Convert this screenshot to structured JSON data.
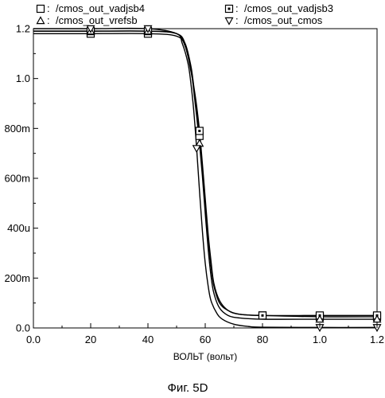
{
  "chart_data": {
    "type": "line",
    "title": "",
    "xlabel": "ВОЛЬТ (вольт)",
    "ylabel": "",
    "x_ticks": [
      "0.0",
      "20",
      "40",
      "60",
      "80",
      "1.0",
      "1.2"
    ],
    "x_tick_values": [
      0,
      20,
      40,
      60,
      80,
      100,
      120
    ],
    "y_ticks": [
      "0.0",
      "200m",
      "400u",
      "600m",
      "800m",
      "1.0",
      "1.2"
    ],
    "y_tick_values": [
      0,
      0.2,
      0.4,
      0.6,
      0.8,
      1.0,
      1.2
    ],
    "xlim": [
      0,
      120
    ],
    "ylim": [
      0,
      1.2
    ],
    "grid": false,
    "legend_position": "top",
    "series": [
      {
        "name": "/cmos_out_vadjsb4",
        "marker": "square",
        "points": [
          [
            0,
            1.18
          ],
          [
            20,
            1.18
          ],
          [
            40,
            1.18
          ],
          [
            50,
            1.17
          ],
          [
            53,
            1.13
          ],
          [
            55,
            1.03
          ],
          [
            56,
            0.96
          ],
          [
            57,
            0.87
          ],
          [
            58,
            0.77
          ],
          [
            59,
            0.64
          ],
          [
            60,
            0.5
          ],
          [
            61,
            0.36
          ],
          [
            62,
            0.25
          ],
          [
            63,
            0.17
          ],
          [
            65,
            0.1
          ],
          [
            68,
            0.07
          ],
          [
            72,
            0.055
          ],
          [
            80,
            0.05
          ],
          [
            100,
            0.045
          ],
          [
            120,
            0.045
          ]
        ],
        "markers_at_x": [
          20,
          40,
          58,
          80,
          100,
          120
        ]
      },
      {
        "name": "/cmos_out_vadjsb3",
        "marker": "square-dot",
        "points": [
          [
            0,
            1.19
          ],
          [
            20,
            1.19
          ],
          [
            40,
            1.19
          ],
          [
            50,
            1.18
          ],
          [
            53,
            1.14
          ],
          [
            55,
            1.05
          ],
          [
            56,
            0.97
          ],
          [
            57,
            0.89
          ],
          [
            58,
            0.79
          ],
          [
            59,
            0.66
          ],
          [
            60,
            0.52
          ],
          [
            61,
            0.38
          ],
          [
            62,
            0.27
          ],
          [
            63,
            0.18
          ],
          [
            65,
            0.11
          ],
          [
            68,
            0.07
          ],
          [
            72,
            0.055
          ],
          [
            80,
            0.05
          ],
          [
            100,
            0.05
          ],
          [
            120,
            0.05
          ]
        ],
        "markers_at_x": [
          20,
          40,
          58,
          80,
          100,
          120
        ]
      },
      {
        "name": "/cmos_out_vrefsb",
        "marker": "triangle-up",
        "points": [
          [
            0,
            1.19
          ],
          [
            20,
            1.19
          ],
          [
            40,
            1.19
          ],
          [
            50,
            1.18
          ],
          [
            53,
            1.13
          ],
          [
            55,
            1.04
          ],
          [
            56,
            0.95
          ],
          [
            57,
            0.85
          ],
          [
            58,
            0.74
          ],
          [
            59,
            0.61
          ],
          [
            60,
            0.46
          ],
          [
            61,
            0.32
          ],
          [
            62,
            0.21
          ],
          [
            63,
            0.14
          ],
          [
            65,
            0.08
          ],
          [
            68,
            0.05
          ],
          [
            72,
            0.04
          ],
          [
            80,
            0.035
          ],
          [
            100,
            0.035
          ],
          [
            120,
            0.035
          ]
        ],
        "markers_at_x": [
          20,
          40,
          58,
          100,
          120
        ]
      },
      {
        "name": "/cmos_out_cmos",
        "marker": "triangle-down",
        "points": [
          [
            0,
            1.2
          ],
          [
            20,
            1.2
          ],
          [
            40,
            1.2
          ],
          [
            50,
            1.18
          ],
          [
            52,
            1.14
          ],
          [
            54,
            1.06
          ],
          [
            55,
            0.98
          ],
          [
            56,
            0.87
          ],
          [
            57,
            0.72
          ],
          [
            58,
            0.55
          ],
          [
            59,
            0.39
          ],
          [
            60,
            0.26
          ],
          [
            61,
            0.17
          ],
          [
            62,
            0.11
          ],
          [
            64,
            0.06
          ],
          [
            66,
            0.035
          ],
          [
            70,
            0.015
          ],
          [
            75,
            0.006
          ],
          [
            80,
            0.003
          ],
          [
            100,
            0.002
          ],
          [
            120,
            0.002
          ]
        ],
        "markers_at_x": [
          20,
          40,
          57,
          100,
          120
        ]
      }
    ],
    "caption": "Фиг. 5D"
  },
  "legend_separator": ":"
}
